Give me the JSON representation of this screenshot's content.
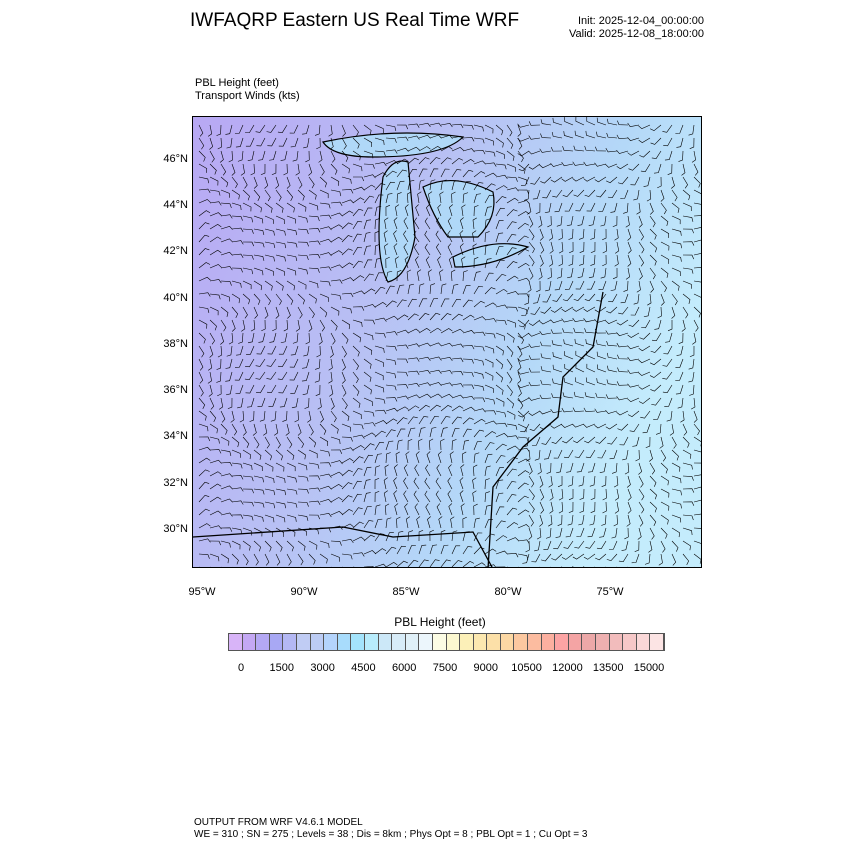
{
  "header": {
    "title": "IWFAQRP Eastern US Real Time WRF",
    "init": "Init: 2025-12-04_00:00:00",
    "valid": "Valid: 2025-12-08_18:00:00"
  },
  "fields": {
    "line1": "PBL Height   (feet)",
    "line2": "Transport Winds   (kts)"
  },
  "map": {
    "lat_labels": [
      "46°N",
      "44°N",
      "42°N",
      "40°N",
      "38°N",
      "36°N",
      "34°N",
      "32°N",
      "30°N"
    ],
    "lon_labels": [
      "95°W",
      "90°W",
      "85°W",
      "80°W",
      "75°W"
    ],
    "lat_range": [
      28.5,
      47.9
    ],
    "lon_range": [
      -95.5,
      -70.5
    ],
    "field": "PBL Height",
    "vectors": "wind barbs",
    "dominant_colors": [
      "#b8b0f4",
      "#b4d8f8",
      "#c8e8fc"
    ]
  },
  "colorbar": {
    "title": "PBL Height  (feet)",
    "labels": [
      "0",
      "1500",
      "3000",
      "4500",
      "6000",
      "7500",
      "9000",
      "10500",
      "12000",
      "13500",
      "15000"
    ],
    "colors": [
      "#d8b4f8",
      "#c4a8f4",
      "#b4a8f4",
      "#a8a8f4",
      "#b4b8f4",
      "#c0ccf4",
      "#bcccf4",
      "#b4d4fc",
      "#a8dcfc",
      "#a4e4fc",
      "#b8ecfc",
      "#cce8f8",
      "#d8ecf8",
      "#e0f0f8",
      "#ecf6fc",
      "#fcfce4",
      "#fcf8d0",
      "#fcf0b8",
      "#fce8b0",
      "#fce0a8",
      "#fcd8a4",
      "#fcc8a0",
      "#fcbca0",
      "#fcb0a0",
      "#fca4a4",
      "#f4a4a4",
      "#eca8a8",
      "#eeb0b0",
      "#f2bcbc",
      "#f6c8c8",
      "#fad8d8",
      "#fce4e4"
    ]
  },
  "footer": {
    "line1": "OUTPUT FROM WRF V4.6.1 MODEL",
    "line2": "WE = 310 ; SN = 275 ; Levels = 38 ; Dis = 8km ; Phys Opt = 8 ; PBL Opt = 1 ; Cu Opt = 3"
  }
}
